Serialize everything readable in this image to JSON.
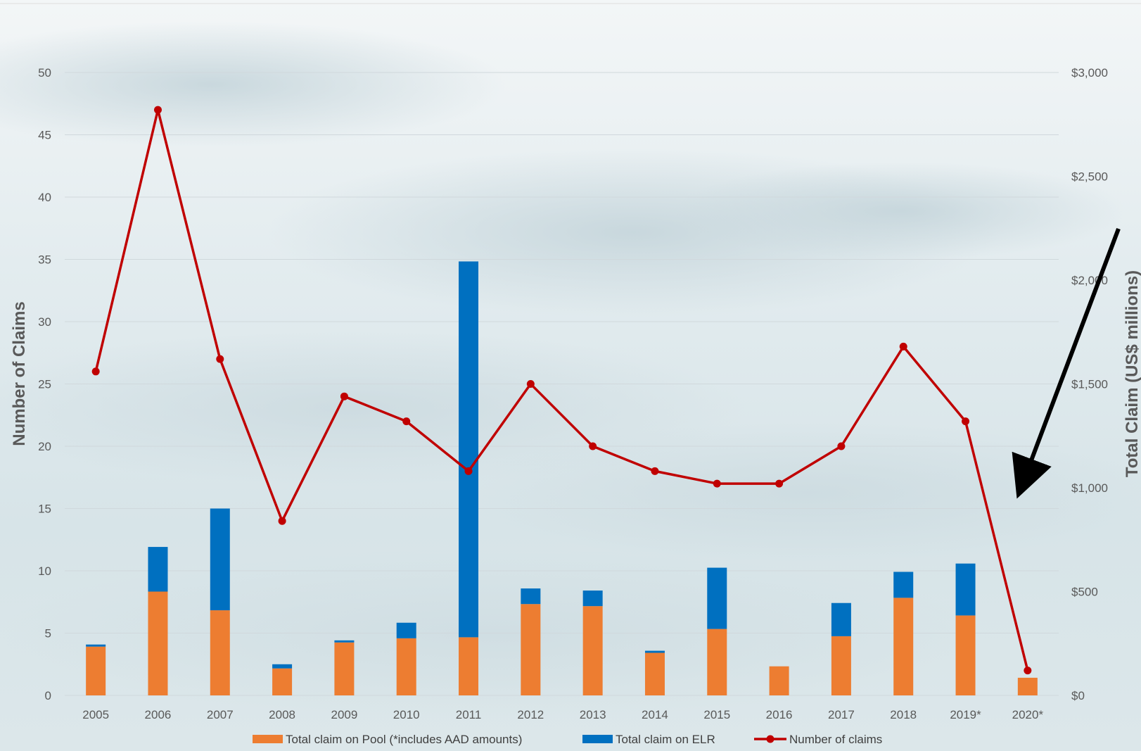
{
  "chart_data": {
    "type": "bar",
    "categories": [
      "2005",
      "2006",
      "2007",
      "2008",
      "2009",
      "2010",
      "2011",
      "2012",
      "2013",
      "2014",
      "2015",
      "2016",
      "2017",
      "2018",
      "2019*",
      "2020*"
    ],
    "series": [
      {
        "name": "Total claim on Pool (*includes AAD amounts)",
        "type": "bar",
        "stack": "claims",
        "axis": "right",
        "color": "#ed7d31",
        "values": [
          235,
          500,
          410,
          130,
          255,
          275,
          280,
          440,
          430,
          205,
          320,
          140,
          285,
          470,
          385,
          85
        ]
      },
      {
        "name": "Total claim on ELR",
        "type": "bar",
        "stack": "claims",
        "axis": "right",
        "color": "#0070c0",
        "values": [
          10,
          215,
          490,
          20,
          10,
          75,
          1810,
          75,
          75,
          10,
          295,
          0,
          160,
          125,
          250,
          0
        ]
      },
      {
        "name": "Number of claims",
        "type": "line",
        "axis": "left",
        "color": "#c00000",
        "values": [
          26,
          47,
          27,
          14,
          24,
          22,
          18,
          25,
          20,
          18,
          17,
          17,
          20,
          28,
          22,
          2
        ]
      }
    ],
    "ylabel": "Number of Claims",
    "y2label": "Total Claim (US$ millions)",
    "ylim": [
      0,
      50
    ],
    "y2lim": [
      0,
      3000
    ],
    "yticks": [
      "0",
      "5",
      "10",
      "15",
      "20",
      "25",
      "30",
      "35",
      "40",
      "45",
      "50"
    ],
    "y2ticks": [
      "$0",
      "$500",
      "$1,000",
      "$1,500",
      "$2,000",
      "$2,500",
      "$3,000"
    ],
    "grid": true,
    "legend": "bottom"
  }
}
